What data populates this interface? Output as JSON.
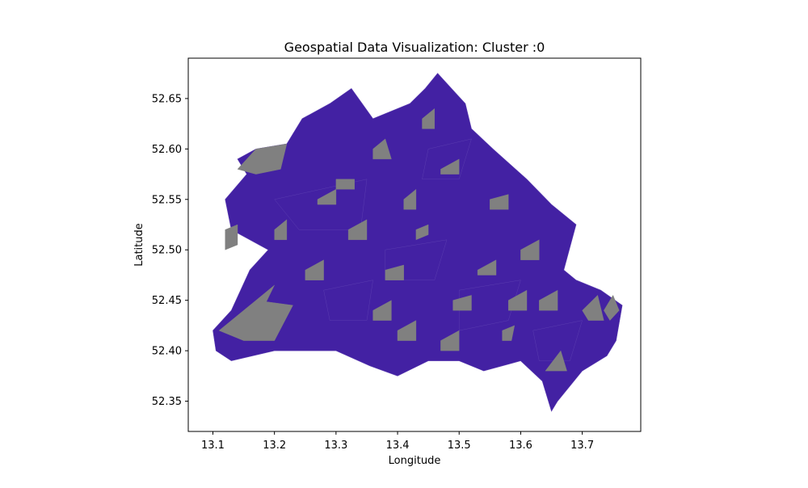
{
  "chart_data": {
    "type": "choropleth",
    "title": "Geospatial Data Visualization: Cluster :0",
    "xlabel": "Longitude",
    "ylabel": "Latitude",
    "xlim": [
      13.06,
      13.795
    ],
    "ylim": [
      52.32,
      52.69
    ],
    "x_ticks": [
      13.1,
      13.2,
      13.3,
      13.4,
      13.5,
      13.6,
      13.7
    ],
    "x_tick_labels": [
      "13.1",
      "13.2",
      "13.3",
      "13.4",
      "13.5",
      "13.6",
      "13.7"
    ],
    "y_ticks": [
      52.35,
      52.4,
      52.45,
      52.5,
      52.55,
      52.6,
      52.65
    ],
    "y_tick_labels": [
      "52.35",
      "52.40",
      "52.45",
      "52.50",
      "52.55",
      "52.60",
      "52.65"
    ],
    "grid": false,
    "legend": "none",
    "colors": {
      "cluster": "#4321a3",
      "other": "#808080",
      "boundary_line": "#5a3cb0"
    },
    "outline": [
      [
        13.1,
        52.42
      ],
      [
        13.13,
        52.44
      ],
      [
        13.16,
        52.48
      ],
      [
        13.19,
        52.5
      ],
      [
        13.13,
        52.52
      ],
      [
        13.12,
        52.55
      ],
      [
        13.155,
        52.575
      ],
      [
        13.14,
        52.59
      ],
      [
        13.17,
        52.6
      ],
      [
        13.22,
        52.605
      ],
      [
        13.245,
        52.63
      ],
      [
        13.29,
        52.645
      ],
      [
        13.325,
        52.66
      ],
      [
        13.36,
        52.63
      ],
      [
        13.42,
        52.645
      ],
      [
        13.445,
        52.66
      ],
      [
        13.465,
        52.675
      ],
      [
        13.495,
        52.655
      ],
      [
        13.51,
        52.645
      ],
      [
        13.52,
        52.62
      ],
      [
        13.555,
        52.6
      ],
      [
        13.61,
        52.57
      ],
      [
        13.65,
        52.545
      ],
      [
        13.69,
        52.525
      ],
      [
        13.67,
        52.48
      ],
      [
        13.69,
        52.47
      ],
      [
        13.73,
        52.46
      ],
      [
        13.765,
        52.445
      ],
      [
        13.755,
        52.41
      ],
      [
        13.74,
        52.395
      ],
      [
        13.7,
        52.38
      ],
      [
        13.66,
        52.35
      ],
      [
        13.65,
        52.34
      ],
      [
        13.635,
        52.37
      ],
      [
        13.6,
        52.39
      ],
      [
        13.54,
        52.38
      ],
      [
        13.5,
        52.39
      ],
      [
        13.45,
        52.39
      ],
      [
        13.4,
        52.375
      ],
      [
        13.355,
        52.385
      ],
      [
        13.3,
        52.4
      ],
      [
        13.2,
        52.4
      ],
      [
        13.13,
        52.39
      ],
      [
        13.105,
        52.4
      ]
    ],
    "regions_cluster": [
      [
        [
          13.2,
          52.55
        ],
        [
          13.35,
          52.57
        ],
        [
          13.34,
          52.52
        ],
        [
          13.24,
          52.52
        ]
      ],
      [
        [
          13.38,
          52.5
        ],
        [
          13.48,
          52.51
        ],
        [
          13.46,
          52.47
        ],
        [
          13.38,
          52.47
        ]
      ],
      [
        [
          13.5,
          52.46
        ],
        [
          13.6,
          52.47
        ],
        [
          13.58,
          52.43
        ],
        [
          13.5,
          52.42
        ]
      ],
      [
        [
          13.28,
          52.46
        ],
        [
          13.36,
          52.47
        ],
        [
          13.35,
          52.43
        ],
        [
          13.29,
          52.43
        ]
      ],
      [
        [
          13.45,
          52.6
        ],
        [
          13.52,
          52.61
        ],
        [
          13.5,
          52.57
        ],
        [
          13.44,
          52.57
        ]
      ],
      [
        [
          13.62,
          52.42
        ],
        [
          13.7,
          52.43
        ],
        [
          13.68,
          52.39
        ],
        [
          13.63,
          52.39
        ]
      ]
    ],
    "regions_other": [
      [
        [
          13.14,
          52.58
        ],
        [
          13.17,
          52.6
        ],
        [
          13.22,
          52.605
        ],
        [
          13.21,
          52.58
        ],
        [
          13.17,
          52.575
        ]
      ],
      [
        [
          13.12,
          52.52
        ],
        [
          13.14,
          52.525
        ],
        [
          13.14,
          52.505
        ],
        [
          13.12,
          52.5
        ]
      ],
      [
        [
          13.11,
          52.42
        ],
        [
          13.17,
          52.45
        ],
        [
          13.23,
          52.445
        ],
        [
          13.2,
          52.41
        ],
        [
          13.15,
          52.41
        ]
      ],
      [
        [
          13.17,
          52.45
        ],
        [
          13.2,
          52.465
        ],
        [
          13.18,
          52.44
        ]
      ],
      [
        [
          13.64,
          52.38
        ],
        [
          13.665,
          52.4
        ],
        [
          13.675,
          52.38
        ]
      ],
      [
        [
          13.7,
          52.44
        ],
        [
          13.725,
          52.455
        ],
        [
          13.735,
          52.43
        ],
        [
          13.71,
          52.43
        ]
      ],
      [
        [
          13.735,
          52.44
        ],
        [
          13.75,
          52.455
        ],
        [
          13.76,
          52.44
        ],
        [
          13.745,
          52.43
        ]
      ],
      [
        [
          13.57,
          52.42
        ],
        [
          13.59,
          52.425
        ],
        [
          13.585,
          52.41
        ],
        [
          13.57,
          52.41
        ]
      ],
      [
        [
          13.3,
          52.57
        ],
        [
          13.33,
          52.57
        ],
        [
          13.33,
          52.56
        ],
        [
          13.3,
          52.56
        ]
      ],
      [
        [
          13.43,
          52.52
        ],
        [
          13.45,
          52.525
        ],
        [
          13.45,
          52.515
        ],
        [
          13.43,
          52.51
        ]
      ],
      [
        [
          13.38,
          52.48
        ],
        [
          13.41,
          52.485
        ],
        [
          13.41,
          52.47
        ],
        [
          13.38,
          52.47
        ]
      ],
      [
        [
          13.49,
          52.45
        ],
        [
          13.52,
          52.455
        ],
        [
          13.52,
          52.44
        ],
        [
          13.49,
          52.44
        ]
      ],
      [
        [
          13.55,
          52.55
        ],
        [
          13.58,
          52.555
        ],
        [
          13.58,
          52.54
        ],
        [
          13.55,
          52.54
        ]
      ],
      [
        [
          13.25,
          52.48
        ],
        [
          13.28,
          52.49
        ],
        [
          13.28,
          52.47
        ],
        [
          13.25,
          52.47
        ]
      ],
      [
        [
          13.6,
          52.5
        ],
        [
          13.63,
          52.51
        ],
        [
          13.63,
          52.49
        ],
        [
          13.6,
          52.49
        ]
      ],
      [
        [
          13.36,
          52.6
        ],
        [
          13.38,
          52.61
        ],
        [
          13.39,
          52.59
        ],
        [
          13.36,
          52.59
        ]
      ],
      [
        [
          13.47,
          52.58
        ],
        [
          13.5,
          52.59
        ],
        [
          13.5,
          52.575
        ],
        [
          13.47,
          52.575
        ]
      ],
      [
        [
          13.4,
          52.42
        ],
        [
          13.43,
          52.43
        ],
        [
          13.43,
          52.41
        ],
        [
          13.4,
          52.41
        ]
      ],
      [
        [
          13.53,
          52.48
        ],
        [
          13.56,
          52.49
        ],
        [
          13.56,
          52.475
        ],
        [
          13.53,
          52.475
        ]
      ],
      [
        [
          13.32,
          52.52
        ],
        [
          13.35,
          52.53
        ],
        [
          13.35,
          52.51
        ],
        [
          13.32,
          52.51
        ]
      ],
      [
        [
          13.63,
          52.45
        ],
        [
          13.66,
          52.46
        ],
        [
          13.66,
          52.44
        ],
        [
          13.63,
          52.44
        ]
      ],
      [
        [
          13.44,
          52.63
        ],
        [
          13.46,
          52.64
        ],
        [
          13.46,
          52.62
        ],
        [
          13.44,
          52.62
        ]
      ],
      [
        [
          13.27,
          52.55
        ],
        [
          13.3,
          52.56
        ],
        [
          13.3,
          52.545
        ],
        [
          13.27,
          52.545
        ]
      ],
      [
        [
          13.41,
          52.55
        ],
        [
          13.43,
          52.56
        ],
        [
          13.43,
          52.54
        ],
        [
          13.41,
          52.54
        ]
      ],
      [
        [
          13.36,
          52.44
        ],
        [
          13.39,
          52.45
        ],
        [
          13.39,
          52.43
        ],
        [
          13.36,
          52.43
        ]
      ],
      [
        [
          13.47,
          52.41
        ],
        [
          13.5,
          52.42
        ],
        [
          13.5,
          52.4
        ],
        [
          13.47,
          52.4
        ]
      ],
      [
        [
          13.2,
          52.52
        ],
        [
          13.22,
          52.53
        ],
        [
          13.22,
          52.51
        ],
        [
          13.2,
          52.51
        ]
      ],
      [
        [
          13.58,
          52.45
        ],
        [
          13.61,
          52.46
        ],
        [
          13.61,
          52.44
        ],
        [
          13.58,
          52.44
        ]
      ]
    ]
  }
}
